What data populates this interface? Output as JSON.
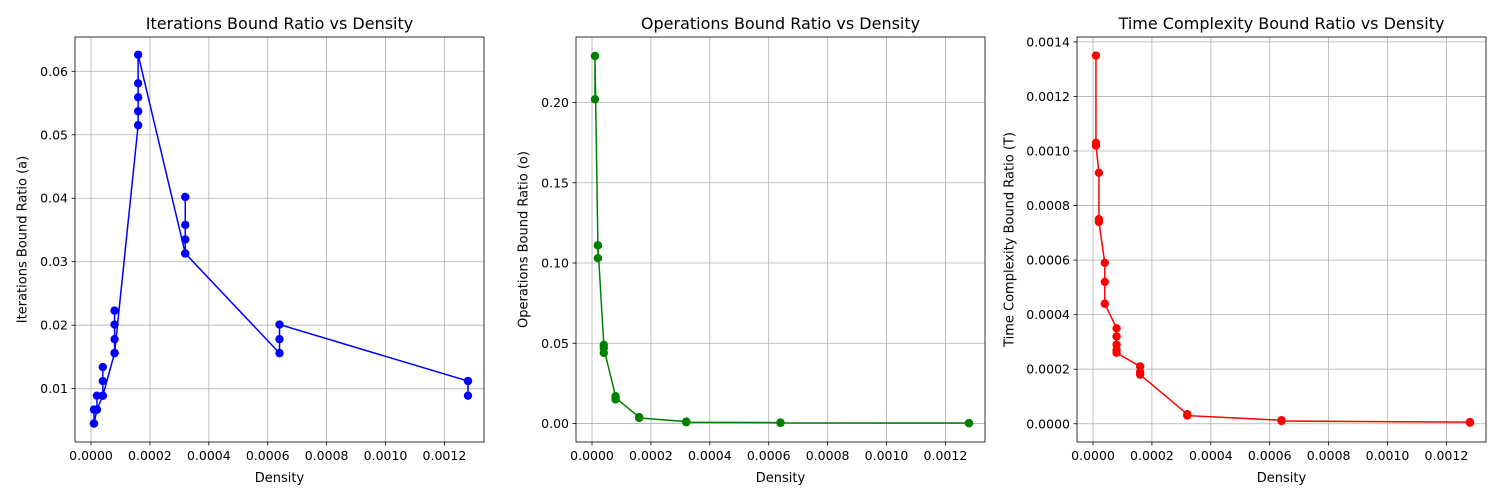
{
  "chart_data": [
    {
      "type": "line",
      "title": "Iterations Bound Ratio vs Density",
      "xlabel": "Density",
      "ylabel": "Iterations Bound Ratio (a)",
      "color": "#0000ff",
      "xlim": [
        -5.44e-05,
        0.0013344
      ],
      "ylim": [
        0.0016,
        0.0654
      ],
      "xticks": [
        0.0,
        0.0002,
        0.0004,
        0.0006,
        0.0008,
        0.001,
        0.0012
      ],
      "xtick_labels": [
        "0.0000",
        "0.0002",
        "0.0004",
        "0.0006",
        "0.0008",
        "0.0010",
        "0.0012"
      ],
      "yticks": [
        0.01,
        0.02,
        0.03,
        0.04,
        0.05,
        0.06
      ],
      "ytick_labels": [
        "0.01",
        "0.02",
        "0.03",
        "0.04",
        "0.05",
        "0.06"
      ],
      "grid": true,
      "series": [
        {
          "x": [
            1e-05,
            1e-05,
            1e-05,
            2e-05,
            2e-05,
            2e-05,
            4e-05,
            4e-05,
            4e-05,
            4e-05,
            8e-05,
            8e-05,
            8e-05,
            8e-05,
            8e-05,
            0.00016,
            0.00016,
            0.00016,
            0.00016,
            0.00016,
            0.00032,
            0.00032,
            0.00032,
            0.00032,
            0.00032,
            0.00064,
            0.00064,
            0.00064,
            0.00128,
            0.00128,
            0.00128
          ],
          "y": [
            0.0045,
            0.0067,
            0.0045,
            0.0067,
            0.0089,
            0.0067,
            0.0089,
            0.0112,
            0.0134,
            0.0089,
            0.0156,
            0.0178,
            0.0201,
            0.0223,
            0.0156,
            0.0515,
            0.0537,
            0.0559,
            0.0581,
            0.0626,
            0.0313,
            0.0335,
            0.0358,
            0.0402,
            0.0313,
            0.0156,
            0.0178,
            0.0201,
            0.0112,
            0.0089,
            0.0112
          ]
        }
      ]
    },
    {
      "type": "line",
      "title": "Operations Bound Ratio vs Density",
      "xlabel": "Density",
      "ylabel": "Operations Bound Ratio (o)",
      "color": "#008000",
      "xlim": [
        -5.44e-05,
        0.0013344
      ],
      "ylim": [
        -0.0115,
        0.2408
      ],
      "xticks": [
        0.0,
        0.0002,
        0.0004,
        0.0006,
        0.0008,
        0.001,
        0.0012
      ],
      "xtick_labels": [
        "0.0000",
        "0.0002",
        "0.0004",
        "0.0006",
        "0.0008",
        "0.0010",
        "0.0012"
      ],
      "yticks": [
        0.0,
        0.05,
        0.1,
        0.15,
        0.2
      ],
      "ytick_labels": [
        "0.00",
        "0.05",
        "0.10",
        "0.15",
        "0.20"
      ],
      "grid": true,
      "series": [
        {
          "x": [
            1e-05,
            1e-05,
            1e-05,
            2e-05,
            2e-05,
            2e-05,
            4e-05,
            4e-05,
            4e-05,
            8e-05,
            8e-05,
            8e-05,
            0.00016,
            0.00016,
            0.00032,
            0.00032,
            0.00064,
            0.00064,
            0.00128,
            0.00128
          ],
          "y": [
            0.229,
            0.202,
            0.229,
            0.111,
            0.103,
            0.111,
            0.049,
            0.044,
            0.047,
            0.017,
            0.015,
            0.016,
            0.004,
            0.0035,
            0.0012,
            0.0008,
            0.0006,
            0.0004,
            0.0003,
            0.0002
          ]
        }
      ]
    },
    {
      "type": "line",
      "title": "Time Complexity Bound Ratio vs Density",
      "xlabel": "Density",
      "ylabel": "Time Complexity Bound Ratio (T)",
      "color": "#ff0000",
      "xlim": [
        -5.44e-05,
        0.0013344
      ],
      "ylim": [
        -6.69e-05,
        0.001418
      ],
      "xticks": [
        0.0,
        0.0002,
        0.0004,
        0.0006,
        0.0008,
        0.001,
        0.0012
      ],
      "xtick_labels": [
        "0.0000",
        "0.0002",
        "0.0004",
        "0.0006",
        "0.0008",
        "0.0010",
        "0.0012"
      ],
      "yticks": [
        0.0,
        0.0002,
        0.0004,
        0.0006,
        0.0008,
        0.001,
        0.0012,
        0.0014
      ],
      "ytick_labels": [
        "0.0000",
        "0.0002",
        "0.0004",
        "0.0006",
        "0.0008",
        "0.0010",
        "0.0012",
        "0.0014"
      ],
      "grid": true,
      "series": [
        {
          "x": [
            1e-05,
            1e-05,
            1e-05,
            2e-05,
            2e-05,
            2e-05,
            4e-05,
            4e-05,
            4e-05,
            8e-05,
            8e-05,
            8e-05,
            8e-05,
            8e-05,
            0.00016,
            0.00016,
            0.00016,
            0.00032,
            0.00032,
            0.00064,
            0.00064,
            0.00128,
            0.00128
          ],
          "y": [
            0.00135,
            0.00103,
            0.00102,
            0.00092,
            0.00075,
            0.00074,
            0.00059,
            0.00052,
            0.00044,
            0.00035,
            0.00032,
            0.00029,
            0.00027,
            0.00026,
            0.00021,
            0.00019,
            0.00018,
            3.5e-05,
            3e-05,
            1.3e-05,
            1e-05,
            6e-06,
            4e-06
          ]
        }
      ]
    }
  ]
}
